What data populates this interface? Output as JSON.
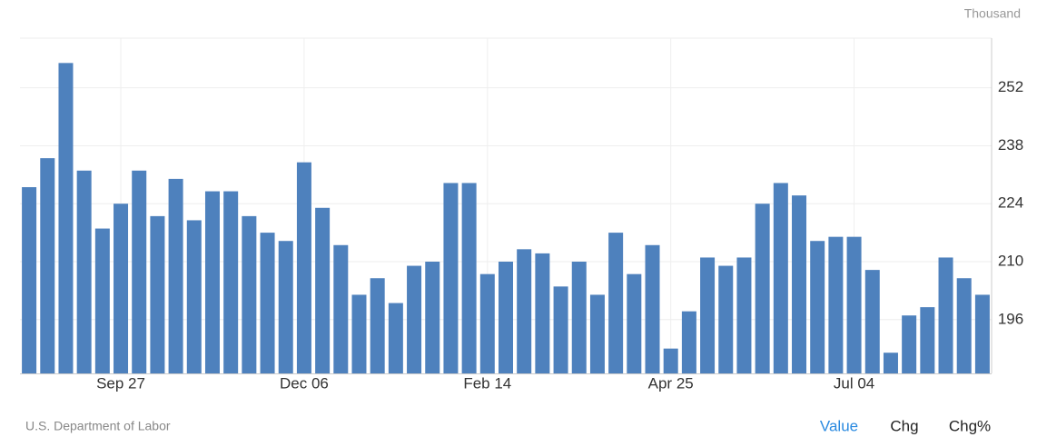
{
  "chart_data": {
    "type": "bar",
    "unit": "Thousand",
    "color": "#4e81bd",
    "grid": true,
    "categories": [
      null,
      null,
      null,
      null,
      null,
      "Sep 27",
      null,
      null,
      null,
      null,
      null,
      null,
      null,
      null,
      null,
      "Dec 06",
      null,
      null,
      null,
      null,
      null,
      null,
      null,
      null,
      null,
      "Feb 14",
      null,
      null,
      null,
      null,
      null,
      null,
      null,
      null,
      null,
      "Apr 25",
      null,
      null,
      null,
      null,
      null,
      null,
      null,
      null,
      null,
      "Jul 04",
      null,
      null,
      null,
      null,
      null,
      null,
      null
    ],
    "values": [
      228,
      235,
      258,
      232,
      218,
      224,
      232,
      221,
      230,
      220,
      227,
      227,
      221,
      217,
      215,
      234,
      223,
      214,
      202,
      206,
      200,
      209,
      210,
      229,
      229,
      207,
      210,
      213,
      212,
      204,
      210,
      202,
      217,
      207,
      214,
      189,
      198,
      211,
      209,
      211,
      224,
      229,
      226,
      215,
      216,
      216,
      208,
      188,
      197,
      199,
      211,
      206,
      202
    ],
    "ylim": [
      183,
      264
    ],
    "yticks": [
      196,
      210,
      224,
      238,
      252
    ]
  },
  "source": "U.S. Department of Labor",
  "tabs": [
    "Value",
    "Chg",
    "Chg%"
  ]
}
